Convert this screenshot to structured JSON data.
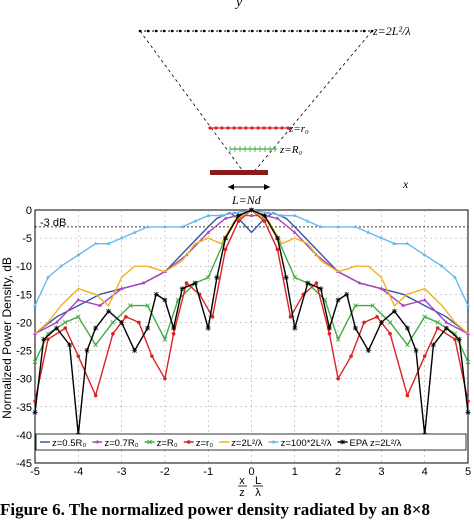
{
  "diagram": {
    "y_label": "y",
    "labels": {
      "far": "z=2L²/λ",
      "r0": "z=r₀",
      "R0": "z=R₀",
      "aperture": "L=Nd",
      "x_axis": "x"
    }
  },
  "chart_data": {
    "type": "line",
    "ylabel": "Normalized Power Density, dB",
    "xlabel_top": "x",
    "xlabel_top_den": "z",
    "xlabel_mid": "L",
    "xlabel_mid_den": "λ",
    "xlim": [
      -5,
      5
    ],
    "ylim": [
      -45,
      0
    ],
    "xticks": [
      "-5",
      "-4",
      "-3",
      "-2",
      "-1",
      "0",
      "1",
      "2",
      "3",
      "4",
      "5"
    ],
    "yticks": [
      "0",
      "-5",
      "-10",
      "-15",
      "-20",
      "-25",
      "-30",
      "-35",
      "-40",
      "-45"
    ],
    "annotation": "-3 dB",
    "reference_line_db": -3,
    "grid": true,
    "legend_position": "bottom",
    "series": [
      {
        "name": "z=0.5R₀",
        "color": "#3355aa",
        "marker": "none",
        "x": [
          -5,
          -4.5,
          -4,
          -3.5,
          -3,
          -2.5,
          -2,
          -1.5,
          -1,
          -0.8,
          -0.5,
          -0.3,
          0,
          0.3,
          0.5,
          0.8,
          1,
          1.5,
          2,
          2.5,
          3,
          3.5,
          4,
          4.5,
          5
        ],
        "y": [
          -22,
          -19,
          -17,
          -15,
          -14,
          -13,
          -11,
          -7,
          -3,
          -1.5,
          -0.5,
          -1.5,
          -4,
          -1.5,
          -0.5,
          -1.5,
          -3,
          -7,
          -11,
          -13,
          -14,
          -15,
          -17,
          -19,
          -22
        ]
      },
      {
        "name": "z=0.7R₀",
        "color": "#aa44bb",
        "marker": "tri",
        "x": [
          -5,
          -4.5,
          -4,
          -3.5,
          -3,
          -2.5,
          -2,
          -1.5,
          -1,
          -0.6,
          -0.3,
          0,
          0.3,
          0.6,
          1,
          1.5,
          2,
          2.5,
          3,
          3.5,
          4,
          4.5,
          5
        ],
        "y": [
          -22,
          -20,
          -16,
          -17,
          -14,
          -13,
          -11,
          -8,
          -4,
          -1.5,
          -1,
          -1,
          -1,
          -1.5,
          -4,
          -8,
          -11,
          -13,
          -14,
          -17,
          -16,
          -20,
          -22
        ]
      },
      {
        "name": "z=R₀",
        "color": "#44aa44",
        "marker": "cross",
        "x": [
          -5,
          -4.7,
          -4.3,
          -4,
          -3.6,
          -3.2,
          -2.8,
          -2.4,
          -2,
          -1.7,
          -1.3,
          -1,
          -0.6,
          -0.3,
          0,
          0.3,
          0.6,
          1,
          1.3,
          1.7,
          2,
          2.4,
          2.8,
          3.2,
          3.6,
          4,
          4.3,
          4.7,
          5
        ],
        "y": [
          -27,
          -22,
          -20,
          -19,
          -24,
          -20,
          -17,
          -17,
          -23,
          -16,
          -13,
          -12,
          -5,
          -1,
          0,
          -1,
          -5,
          -12,
          -13,
          -16,
          -23,
          -17,
          -17,
          -20,
          -24,
          -19,
          -20,
          -22,
          -27
        ]
      },
      {
        "name": "z=r₀",
        "color": "#dd2222",
        "marker": "dot",
        "x": [
          -5,
          -4.7,
          -4.3,
          -4,
          -3.6,
          -3.2,
          -2.9,
          -2.6,
          -2.3,
          -2,
          -1.8,
          -1.5,
          -1.2,
          -0.9,
          -0.6,
          -0.3,
          0,
          0.3,
          0.6,
          0.9,
          1.2,
          1.5,
          1.8,
          2,
          2.3,
          2.6,
          2.9,
          3.2,
          3.6,
          4,
          4.3,
          4.7,
          5
        ],
        "y": [
          -34,
          -23,
          -21,
          -26,
          -33,
          -22,
          -19,
          -20,
          -26,
          -30,
          -22,
          -13,
          -15,
          -19,
          -7,
          -2,
          0,
          -2,
          -7,
          -19,
          -15,
          -13,
          -22,
          -30,
          -26,
          -20,
          -19,
          -22,
          -33,
          -26,
          -21,
          -23,
          -34
        ]
      },
      {
        "name": "z=2L²/λ",
        "color": "#f2b21b",
        "marker": "none",
        "x": [
          -5,
          -4.7,
          -4.4,
          -4,
          -3.6,
          -3.3,
          -3,
          -2.7,
          -2.4,
          -2,
          -1.6,
          -1.3,
          -1,
          -0.7,
          -0.4,
          0,
          0.4,
          0.7,
          1,
          1.3,
          1.6,
          2,
          2.4,
          2.7,
          3,
          3.3,
          3.6,
          4,
          4.4,
          4.7,
          5
        ],
        "y": [
          -22,
          -20,
          -17,
          -14,
          -15,
          -17,
          -12,
          -10,
          -10,
          -11,
          -9,
          -6,
          -5,
          -6,
          -2,
          0,
          -2,
          -6,
          -5,
          -6,
          -9,
          -11,
          -10,
          -10,
          -12,
          -17,
          -15,
          -14,
          -17,
          -20,
          -22
        ]
      },
      {
        "name": "z=100*2L²/λ",
        "color": "#66bbee",
        "marker": "tri",
        "x": [
          -5,
          -4.7,
          -4.4,
          -4,
          -3.6,
          -3.3,
          -3,
          -2.7,
          -2.4,
          -2,
          -1.6,
          -1.3,
          -1,
          -0.7,
          -0.4,
          0,
          0.4,
          0.7,
          1,
          1.3,
          1.6,
          2,
          2.4,
          2.7,
          3,
          3.3,
          3.6,
          4,
          4.4,
          4.7,
          5
        ],
        "y": [
          -17,
          -12,
          -10,
          -8,
          -6,
          -6,
          -5,
          -4,
          -3,
          -3,
          -3,
          -2,
          -1,
          -1,
          -0.5,
          0,
          -0.5,
          -1,
          -1,
          -2,
          -3,
          -3,
          -3,
          -4,
          -5,
          -6,
          -6,
          -8,
          -10,
          -12,
          -17
        ]
      },
      {
        "name": "EPA z=2L²/λ",
        "color": "#000000",
        "marker": "star",
        "x": [
          -5,
          -4.8,
          -4.5,
          -4.2,
          -4,
          -3.8,
          -3.6,
          -3.3,
          -3,
          -2.7,
          -2.4,
          -2.2,
          -2,
          -1.8,
          -1.6,
          -1.3,
          -1,
          -0.8,
          -0.6,
          -0.3,
          0,
          0.3,
          0.6,
          0.8,
          1,
          1.3,
          1.6,
          1.8,
          2,
          2.2,
          2.4,
          2.7,
          3,
          3.3,
          3.6,
          3.8,
          4,
          4.2,
          4.5,
          4.8,
          5
        ],
        "y": [
          -36,
          -23,
          -21,
          -24,
          -40,
          -25,
          -21,
          -18,
          -20,
          -25,
          -21,
          -15,
          -16,
          -21,
          -14,
          -13,
          -21,
          -12,
          -5,
          -1,
          0,
          -1,
          -5,
          -12,
          -21,
          -13,
          -14,
          -21,
          -16,
          -15,
          -21,
          -25,
          -20,
          -18,
          -21,
          -25,
          -40,
          -24,
          -21,
          -23,
          -36
        ]
      }
    ]
  },
  "caption": "Figure 6. The normalized power density radiated by an 8×8"
}
